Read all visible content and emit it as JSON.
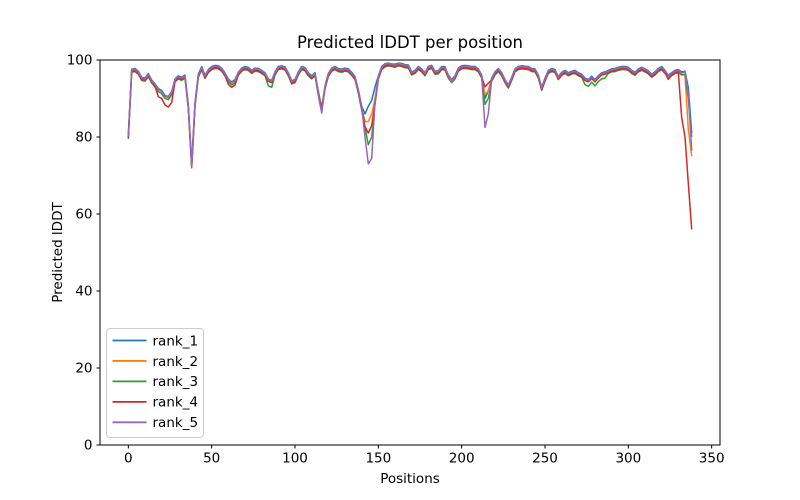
{
  "figure": {
    "background_color": "#ffffff",
    "type_hint": "matplotlib line figure"
  },
  "chart_data": {
    "type": "line",
    "title": "Predicted lDDT per position",
    "xlabel": "Positions",
    "ylabel": "Predicted lDDT",
    "xlim": [
      -17,
      355
    ],
    "ylim": [
      0,
      100
    ],
    "x_ticks": [
      0,
      50,
      100,
      150,
      200,
      250,
      300,
      350
    ],
    "y_ticks": [
      0,
      20,
      40,
      60,
      80,
      100
    ],
    "grid": false,
    "legend_position": "lower left",
    "line_width": 1.5,
    "x": [
      0,
      2,
      4,
      6,
      8,
      10,
      12,
      14,
      16,
      18,
      20,
      22,
      24,
      26,
      28,
      30,
      32,
      34,
      36,
      38,
      40,
      42,
      44,
      46,
      48,
      50,
      52,
      54,
      56,
      58,
      60,
      62,
      64,
      66,
      68,
      70,
      72,
      74,
      76,
      78,
      80,
      82,
      84,
      86,
      88,
      90,
      92,
      94,
      96,
      98,
      100,
      102,
      104,
      106,
      108,
      110,
      112,
      114,
      116,
      118,
      120,
      122,
      124,
      126,
      128,
      130,
      132,
      134,
      136,
      138,
      140,
      142,
      144,
      146,
      148,
      150,
      152,
      154,
      156,
      158,
      160,
      162,
      164,
      166,
      168,
      170,
      172,
      174,
      176,
      178,
      180,
      182,
      184,
      186,
      188,
      190,
      192,
      194,
      196,
      198,
      200,
      202,
      204,
      206,
      208,
      210,
      212,
      214,
      216,
      218,
      220,
      222,
      224,
      226,
      228,
      230,
      232,
      234,
      236,
      238,
      240,
      242,
      244,
      246,
      248,
      250,
      252,
      254,
      256,
      258,
      260,
      262,
      264,
      266,
      268,
      270,
      272,
      274,
      276,
      278,
      280,
      282,
      284,
      286,
      288,
      290,
      292,
      294,
      296,
      298,
      300,
      302,
      304,
      306,
      308,
      310,
      312,
      314,
      316,
      318,
      320,
      322,
      324,
      326,
      328,
      330,
      332,
      334,
      336,
      338
    ],
    "series": [
      {
        "name": "rank_1",
        "color": "#1f77b4",
        "values": [
          80.5,
          97.6,
          97.8,
          97.1,
          95.5,
          95.3,
          96.5,
          94.8,
          93.8,
          92.6,
          92.1,
          90.8,
          90.5,
          91.8,
          95.1,
          95.9,
          95.5,
          96.1,
          88.3,
          73.0,
          88.8,
          96.3,
          98.3,
          96.0,
          97.5,
          98.3,
          98.6,
          98.5,
          97.9,
          96.6,
          95.1,
          94.3,
          94.9,
          96.8,
          97.9,
          98.3,
          98.1,
          97.3,
          97.9,
          97.8,
          97.3,
          96.7,
          95.1,
          94.7,
          96.9,
          98.3,
          98.5,
          98.2,
          96.7,
          94.6,
          94.9,
          96.9,
          98.3,
          98.0,
          96.7,
          95.9,
          96.7,
          91.9,
          87.6,
          93.3,
          96.5,
          97.9,
          98.3,
          97.8,
          97.6,
          97.9,
          97.7,
          96.8,
          95.7,
          92.3,
          88.0,
          86.0,
          88.0,
          89.5,
          93.0,
          95.8,
          98.3,
          99.0,
          99.2,
          99.0,
          98.9,
          99.2,
          99.1,
          98.8,
          98.7,
          96.9,
          97.3,
          98.3,
          97.7,
          96.7,
          98.3,
          98.6,
          97.1,
          97.2,
          98.3,
          98.2,
          96.1,
          94.9,
          95.9,
          97.9,
          98.5,
          98.6,
          98.5,
          98.3,
          98.3,
          97.7,
          96.1,
          90.0,
          92.0,
          95.3,
          96.9,
          97.8,
          96.7,
          94.9,
          93.5,
          95.5,
          97.7,
          98.3,
          98.5,
          98.4,
          98.3,
          97.8,
          97.7,
          96.1,
          92.9,
          95.3,
          97.3,
          97.8,
          97.5,
          95.7,
          96.8,
          97.3,
          96.7,
          97.1,
          97.3,
          96.7,
          96.3,
          95.3,
          94.9,
          95.8,
          94.9,
          95.9,
          96.7,
          96.9,
          97.3,
          97.7,
          97.8,
          98.1,
          98.3,
          98.3,
          98.1,
          97.3,
          96.8,
          97.7,
          98.1,
          97.7,
          97.2,
          96.3,
          96.9,
          97.8,
          98.3,
          97.3,
          96.1,
          96.7,
          97.3,
          97.5,
          96.9,
          97.1,
          92.8,
          81.0
        ]
      },
      {
        "name": "rank_2",
        "color": "#ff7f0e",
        "values": [
          80.0,
          97.3,
          97.5,
          96.8,
          95.2,
          95.0,
          96.2,
          94.5,
          93.5,
          92.3,
          91.8,
          90.5,
          90.2,
          91.5,
          94.8,
          95.6,
          95.2,
          95.8,
          88.0,
          72.8,
          88.5,
          96.0,
          98.0,
          95.7,
          97.2,
          98.0,
          98.3,
          98.2,
          97.6,
          96.3,
          94.8,
          94.0,
          94.6,
          96.5,
          97.6,
          98.0,
          97.8,
          97.0,
          97.6,
          97.5,
          97.0,
          96.4,
          94.8,
          94.4,
          96.6,
          98.0,
          98.2,
          97.9,
          96.4,
          94.3,
          94.6,
          96.6,
          98.0,
          97.7,
          96.4,
          95.6,
          96.4,
          91.5,
          87.3,
          93.0,
          96.2,
          97.6,
          98.0,
          97.5,
          97.3,
          97.6,
          97.4,
          96.5,
          95.4,
          92.0,
          87.5,
          84.0,
          84.0,
          86.0,
          90.0,
          95.5,
          98.0,
          98.7,
          99.0,
          98.8,
          98.6,
          99.0,
          98.8,
          98.5,
          98.4,
          96.6,
          97.0,
          98.0,
          97.4,
          96.4,
          98.0,
          98.3,
          96.8,
          96.9,
          98.0,
          97.9,
          95.8,
          94.6,
          95.6,
          97.6,
          98.2,
          98.3,
          98.2,
          98.0,
          98.0,
          97.4,
          95.8,
          91.0,
          92.0,
          95.0,
          96.6,
          97.5,
          96.4,
          94.6,
          93.2,
          95.2,
          97.4,
          98.0,
          98.2,
          98.1,
          98.0,
          97.5,
          97.4,
          95.8,
          92.6,
          95.0,
          97.0,
          97.5,
          97.2,
          95.4,
          96.5,
          97.0,
          96.4,
          96.8,
          97.0,
          96.4,
          96.0,
          95.0,
          94.6,
          95.5,
          94.6,
          95.6,
          96.4,
          96.6,
          97.0,
          97.4,
          97.5,
          97.8,
          98.0,
          98.0,
          97.8,
          97.0,
          96.5,
          97.4,
          97.8,
          97.4,
          96.9,
          96.0,
          96.6,
          97.5,
          98.0,
          97.0,
          95.8,
          96.4,
          97.0,
          97.2,
          96.4,
          96.0,
          82.0,
          75.0
        ]
      },
      {
        "name": "rank_3",
        "color": "#2ca02c",
        "values": [
          79.5,
          96.8,
          97.0,
          96.3,
          94.7,
          94.5,
          95.7,
          94.0,
          93.0,
          91.8,
          91.3,
          90.0,
          89.7,
          91.0,
          94.3,
          95.1,
          94.7,
          95.3,
          87.5,
          72.4,
          88.0,
          95.5,
          97.5,
          95.2,
          96.7,
          97.5,
          97.8,
          97.7,
          97.1,
          95.8,
          94.3,
          93.5,
          94.1,
          96.0,
          97.1,
          97.5,
          97.3,
          96.5,
          97.1,
          97.0,
          96.5,
          95.9,
          93.3,
          92.9,
          96.1,
          97.5,
          97.7,
          97.4,
          95.9,
          93.8,
          94.1,
          96.1,
          97.5,
          97.2,
          95.9,
          95.1,
          95.9,
          91.0,
          86.8,
          92.5,
          95.7,
          97.1,
          97.5,
          97.0,
          96.8,
          97.1,
          96.9,
          96.0,
          94.9,
          91.5,
          87.0,
          82.5,
          78.0,
          80.0,
          88.5,
          95.0,
          97.5,
          98.2,
          98.5,
          98.3,
          98.1,
          98.5,
          98.3,
          98.0,
          97.9,
          96.1,
          96.5,
          97.5,
          96.9,
          95.9,
          97.5,
          97.8,
          96.3,
          96.4,
          97.5,
          97.4,
          95.3,
          94.1,
          95.1,
          97.1,
          97.7,
          97.8,
          97.7,
          97.5,
          97.5,
          96.9,
          95.3,
          88.5,
          90.0,
          94.5,
          96.1,
          97.0,
          95.9,
          94.1,
          92.7,
          94.7,
          96.9,
          97.5,
          97.7,
          97.6,
          97.5,
          97.0,
          96.9,
          95.3,
          92.1,
          94.5,
          96.5,
          97.0,
          96.7,
          94.9,
          96.0,
          96.5,
          95.9,
          96.3,
          96.5,
          95.9,
          95.5,
          93.6,
          93.2,
          94.2,
          93.3,
          94.4,
          95.1,
          95.3,
          96.5,
          96.9,
          97.0,
          97.3,
          97.5,
          97.5,
          97.3,
          96.5,
          96.0,
          96.9,
          97.3,
          96.9,
          96.4,
          95.5,
          96.1,
          97.0,
          97.5,
          96.5,
          95.3,
          95.9,
          96.5,
          96.7,
          96.1,
          96.3,
          90.0,
          80.0
        ]
      },
      {
        "name": "rank_4",
        "color": "#d62728",
        "values": [
          79.7,
          97.0,
          97.2,
          96.5,
          94.9,
          94.7,
          95.9,
          94.2,
          93.2,
          90.5,
          90.0,
          88.3,
          87.8,
          89.0,
          94.5,
          95.3,
          94.9,
          95.5,
          87.7,
          72.0,
          88.2,
          95.7,
          97.7,
          95.4,
          96.9,
          97.7,
          98.0,
          97.9,
          97.3,
          96.0,
          93.7,
          92.9,
          93.5,
          96.2,
          97.3,
          97.7,
          97.5,
          96.7,
          97.3,
          97.2,
          96.7,
          96.1,
          94.5,
          94.1,
          96.3,
          97.7,
          97.9,
          97.6,
          96.1,
          94.0,
          94.3,
          96.3,
          97.7,
          97.4,
          96.1,
          95.3,
          96.1,
          91.2,
          87.0,
          92.7,
          95.9,
          97.3,
          97.7,
          97.2,
          97.0,
          97.3,
          97.1,
          96.2,
          95.1,
          91.7,
          87.2,
          82.7,
          81.0,
          83.0,
          88.7,
          95.2,
          97.7,
          98.4,
          98.7,
          98.5,
          98.3,
          98.7,
          98.5,
          98.2,
          98.1,
          96.3,
          96.7,
          97.7,
          97.1,
          96.1,
          97.7,
          98.0,
          96.5,
          96.6,
          97.7,
          97.6,
          95.5,
          94.3,
          95.3,
          97.3,
          97.9,
          98.0,
          97.9,
          97.7,
          97.7,
          97.1,
          95.5,
          93.0,
          94.0,
          94.7,
          96.3,
          97.2,
          96.1,
          94.3,
          92.9,
          94.9,
          97.1,
          97.7,
          97.9,
          97.8,
          97.7,
          97.2,
          97.1,
          95.5,
          92.3,
          94.7,
          96.7,
          97.2,
          96.9,
          95.1,
          96.2,
          96.7,
          96.1,
          96.5,
          96.7,
          96.1,
          95.7,
          94.7,
          94.3,
          95.2,
          94.3,
          95.3,
          96.1,
          96.3,
          96.7,
          97.1,
          97.2,
          97.5,
          97.7,
          97.7,
          97.5,
          96.7,
          96.2,
          97.1,
          97.5,
          97.1,
          96.6,
          95.7,
          96.3,
          97.2,
          97.7,
          96.7,
          95.0,
          96.1,
          96.7,
          96.9,
          85.0,
          80.0,
          68.0,
          56.0
        ]
      },
      {
        "name": "rank_5",
        "color": "#9467bd",
        "values": [
          80.1,
          97.4,
          97.6,
          96.9,
          95.3,
          95.1,
          96.3,
          94.6,
          93.6,
          92.4,
          91.9,
          90.6,
          90.3,
          91.6,
          94.9,
          95.7,
          95.3,
          95.9,
          88.1,
          72.3,
          88.6,
          96.1,
          98.1,
          95.8,
          97.3,
          98.1,
          98.4,
          98.3,
          97.7,
          96.4,
          94.9,
          94.1,
          94.7,
          96.6,
          97.7,
          98.1,
          97.9,
          97.1,
          97.7,
          97.6,
          97.1,
          96.5,
          94.9,
          94.5,
          96.7,
          98.1,
          98.3,
          98.0,
          96.5,
          94.4,
          94.7,
          96.7,
          98.1,
          97.8,
          96.5,
          95.7,
          96.5,
          90.8,
          86.2,
          93.1,
          96.3,
          97.7,
          98.1,
          97.6,
          97.4,
          97.7,
          97.5,
          96.6,
          95.5,
          92.1,
          87.6,
          80.0,
          73.0,
          74.5,
          89.1,
          95.6,
          98.1,
          98.8,
          99.1,
          98.9,
          98.7,
          99.1,
          98.9,
          98.6,
          98.5,
          96.7,
          97.1,
          98.1,
          97.5,
          96.5,
          98.1,
          98.4,
          96.9,
          97.0,
          98.1,
          98.0,
          95.9,
          94.2,
          95.7,
          97.7,
          98.3,
          98.4,
          98.3,
          98.1,
          98.1,
          97.5,
          95.9,
          82.5,
          86.0,
          95.1,
          96.7,
          97.6,
          96.5,
          94.7,
          93.3,
          95.3,
          97.5,
          98.1,
          98.3,
          98.2,
          98.1,
          97.6,
          97.5,
          95.9,
          92.7,
          95.1,
          97.1,
          97.6,
          97.3,
          95.5,
          96.6,
          97.1,
          96.5,
          96.9,
          97.1,
          96.5,
          96.1,
          95.1,
          94.7,
          95.6,
          94.7,
          95.7,
          96.5,
          96.7,
          97.1,
          97.5,
          97.6,
          97.9,
          98.1,
          98.1,
          97.9,
          97.1,
          96.6,
          97.5,
          97.9,
          97.5,
          97.0,
          96.1,
          96.7,
          97.6,
          98.1,
          97.1,
          95.9,
          96.5,
          97.1,
          97.3,
          96.7,
          96.9,
          91.1,
          76.5
        ]
      }
    ]
  }
}
